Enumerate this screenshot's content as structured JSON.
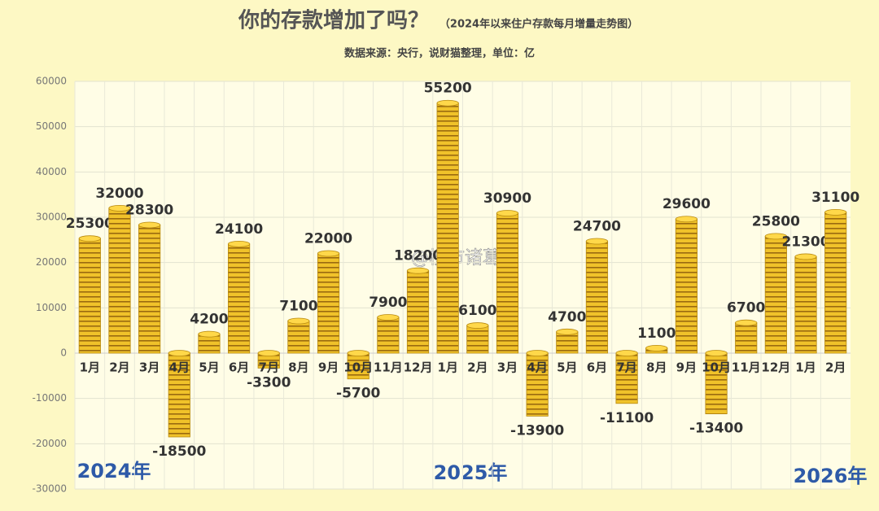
{
  "chart_data": {
    "type": "bar",
    "title": "你的存款增加了吗？",
    "subtitle": "（2024年以来住户存款每月增量走势图）",
    "source": "数据来源：央行，说财猫整理，单位：亿",
    "years": [
      "2024年",
      "2025年",
      "2026年"
    ],
    "watermark": "@楼市诸葛",
    "categories": [
      "1月",
      "2月",
      "3月",
      "4月",
      "5月",
      "6月",
      "7月",
      "8月",
      "9月",
      "10月",
      "11月",
      "12月",
      "1月",
      "2月",
      "3月",
      "4月",
      "5月",
      "6月",
      "7月",
      "8月",
      "9月",
      "10月",
      "11月",
      "12月",
      "1月",
      "2月"
    ],
    "values": [
      25300,
      32000,
      28300,
      -18500,
      4200,
      24100,
      -3300,
      7100,
      22000,
      -5700,
      7900,
      18200,
      55200,
      6100,
      30900,
      -13900,
      4700,
      24700,
      -11100,
      1100,
      29600,
      -13400,
      6700,
      25800,
      21300,
      31100
    ],
    "color": "#e8b820",
    "ylim": [
      -30000,
      60000
    ],
    "yticks": [
      -30000,
      -20000,
      -10000,
      0,
      10000,
      20000,
      30000,
      40000,
      50000,
      60000
    ],
    "grid": true
  }
}
